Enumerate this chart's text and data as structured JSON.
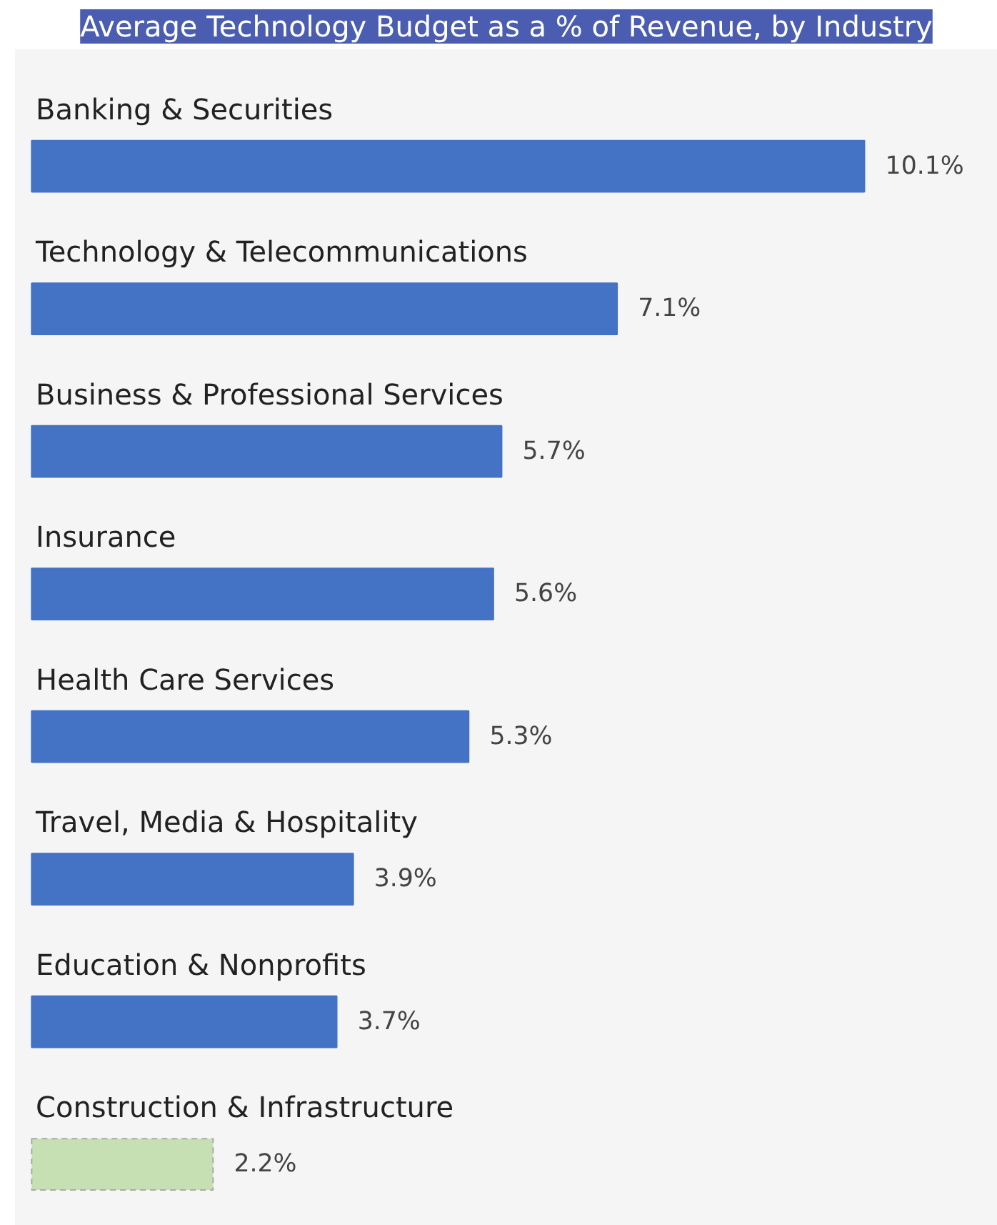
{
  "chart_data": {
    "type": "bar",
    "orientation": "horizontal",
    "title": "Average Technology Budget as a % of Revenue, by Industry",
    "categories": [
      "Banking & Securities",
      "Technology & Telecommunications",
      "Business & Professional Services",
      "Insurance",
      "Health Care Services",
      "Travel, Media & Hospitality",
      "Education & Nonprofits",
      "Construction & Infrastructure"
    ],
    "values": [
      10.1,
      7.1,
      5.7,
      5.6,
      5.3,
      3.9,
      3.7,
      2.2
    ],
    "value_labels": [
      "10.1%",
      "7.1%",
      "5.7%",
      "5.6%",
      "5.3%",
      "3.9%",
      "3.7%",
      "2.2%"
    ],
    "colors": [
      "#4472c4",
      "#4472c4",
      "#4472c4",
      "#4472c4",
      "#4472c4",
      "#4472c4",
      "#4472c4",
      "#c6e0b4"
    ]
  }
}
